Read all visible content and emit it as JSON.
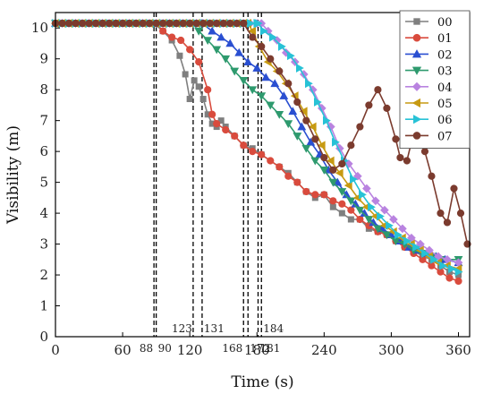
{
  "chart_data": {
    "type": "line",
    "xlabel": "Time (s)",
    "ylabel": "Visibility (m)",
    "xlim": [
      0,
      370
    ],
    "ylim": [
      0,
      10.5
    ],
    "xticks": [
      "0",
      "60",
      "120",
      "180",
      "240",
      "300",
      "360"
    ],
    "yticks": [
      "0",
      "1",
      "2",
      "3",
      "4",
      "5",
      "6",
      "7",
      "8",
      "9",
      "10"
    ],
    "legend_position": "top-right",
    "vlines": [
      {
        "x": 88,
        "label": "88"
      },
      {
        "x": 90,
        "label": "90"
      },
      {
        "x": 123,
        "label": "123"
      },
      {
        "x": 131,
        "label": "131"
      },
      {
        "x": 168,
        "label": "168"
      },
      {
        "x": 172,
        "label": "172"
      },
      {
        "x": 181,
        "label": "181"
      },
      {
        "x": 184,
        "label": "184"
      }
    ],
    "series": [
      {
        "name": "00",
        "color": "#7f7f7f",
        "marker": "square",
        "start": 88,
        "points": [
          [
            96,
            9.9
          ],
          [
            104,
            9.6
          ],
          [
            111,
            9.1
          ],
          [
            116,
            8.5
          ],
          [
            120,
            7.7
          ],
          [
            124,
            8.3
          ],
          [
            128,
            8.1
          ],
          [
            132,
            7.7
          ],
          [
            136,
            7.2
          ],
          [
            140,
            6.9
          ],
          [
            144,
            6.8
          ],
          [
            148,
            7.0
          ],
          [
            152,
            6.8
          ],
          [
            160,
            6.5
          ],
          [
            168,
            6.2
          ],
          [
            176,
            6.1
          ],
          [
            184,
            5.9
          ],
          [
            200,
            5.5
          ],
          [
            208,
            5.3
          ],
          [
            216,
            5.0
          ],
          [
            224,
            4.7
          ],
          [
            232,
            4.5
          ],
          [
            240,
            4.6
          ],
          [
            248,
            4.2
          ],
          [
            256,
            4.0
          ],
          [
            264,
            3.8
          ],
          [
            272,
            3.8
          ],
          [
            280,
            3.5
          ],
          [
            288,
            3.4
          ],
          [
            296,
            3.3
          ],
          [
            304,
            3.1
          ],
          [
            312,
            2.9
          ],
          [
            320,
            2.8
          ],
          [
            328,
            2.6
          ],
          [
            336,
            2.5
          ],
          [
            344,
            2.3
          ],
          [
            352,
            2.1
          ],
          [
            360,
            2.0
          ]
        ]
      },
      {
        "name": "01",
        "color": "#d94b3d",
        "marker": "circle",
        "start": 90,
        "points": [
          [
            96,
            9.9
          ],
          [
            104,
            9.7
          ],
          [
            112,
            9.6
          ],
          [
            120,
            9.3
          ],
          [
            128,
            8.9
          ],
          [
            136,
            8.0
          ],
          [
            140,
            7.2
          ],
          [
            144,
            6.9
          ],
          [
            152,
            6.7
          ],
          [
            160,
            6.5
          ],
          [
            168,
            6.2
          ],
          [
            176,
            6.0
          ],
          [
            184,
            5.9
          ],
          [
            192,
            5.7
          ],
          [
            200,
            5.5
          ],
          [
            208,
            5.2
          ],
          [
            216,
            5.0
          ],
          [
            224,
            4.7
          ],
          [
            232,
            4.6
          ],
          [
            240,
            4.6
          ],
          [
            248,
            4.4
          ],
          [
            256,
            4.3
          ],
          [
            264,
            4.1
          ],
          [
            272,
            3.8
          ],
          [
            280,
            3.6
          ],
          [
            288,
            3.4
          ],
          [
            296,
            3.3
          ],
          [
            304,
            3.1
          ],
          [
            312,
            2.9
          ],
          [
            320,
            2.7
          ],
          [
            328,
            2.5
          ],
          [
            336,
            2.3
          ],
          [
            344,
            2.1
          ],
          [
            352,
            1.9
          ],
          [
            360,
            1.8
          ]
        ]
      },
      {
        "name": "02",
        "color": "#2a4fd1",
        "marker": "triangle-up",
        "start": 131,
        "points": [
          [
            140,
            9.9
          ],
          [
            148,
            9.7
          ],
          [
            156,
            9.5
          ],
          [
            164,
            9.2
          ],
          [
            172,
            8.9
          ],
          [
            180,
            8.7
          ],
          [
            188,
            8.4
          ],
          [
            196,
            8.2
          ],
          [
            204,
            7.8
          ],
          [
            212,
            7.3
          ],
          [
            220,
            6.8
          ],
          [
            228,
            6.3
          ],
          [
            236,
            5.9
          ],
          [
            244,
            5.4
          ],
          [
            252,
            5.0
          ],
          [
            260,
            4.6
          ],
          [
            268,
            4.3
          ],
          [
            276,
            4.0
          ],
          [
            284,
            3.7
          ],
          [
            292,
            3.5
          ],
          [
            300,
            3.3
          ],
          [
            308,
            3.1
          ],
          [
            316,
            2.9
          ],
          [
            324,
            2.8
          ],
          [
            332,
            2.7
          ],
          [
            340,
            2.6
          ],
          [
            348,
            2.5
          ],
          [
            360,
            2.4
          ]
        ]
      },
      {
        "name": "03",
        "color": "#2e9a6e",
        "marker": "triangle-down",
        "start": 123,
        "points": [
          [
            128,
            9.9
          ],
          [
            136,
            9.6
          ],
          [
            144,
            9.3
          ],
          [
            152,
            9.0
          ],
          [
            160,
            8.6
          ],
          [
            168,
            8.3
          ],
          [
            176,
            8.0
          ],
          [
            184,
            7.8
          ],
          [
            192,
            7.5
          ],
          [
            200,
            7.2
          ],
          [
            208,
            6.9
          ],
          [
            216,
            6.5
          ],
          [
            224,
            6.1
          ],
          [
            232,
            5.7
          ],
          [
            240,
            5.4
          ],
          [
            248,
            5.0
          ],
          [
            256,
            4.7
          ],
          [
            264,
            4.4
          ],
          [
            272,
            4.1
          ],
          [
            280,
            3.8
          ],
          [
            288,
            3.5
          ],
          [
            296,
            3.3
          ],
          [
            304,
            3.1
          ],
          [
            312,
            3.0
          ],
          [
            320,
            2.8
          ],
          [
            328,
            2.7
          ],
          [
            336,
            2.6
          ],
          [
            344,
            2.5
          ],
          [
            360,
            2.5
          ]
        ]
      },
      {
        "name": "04",
        "color": "#b983e0",
        "marker": "diamond",
        "start": 184,
        "points": [
          [
            190,
            9.9
          ],
          [
            198,
            9.6
          ],
          [
            206,
            9.2
          ],
          [
            214,
            8.9
          ],
          [
            222,
            8.5
          ],
          [
            230,
            8.0
          ],
          [
            238,
            7.4
          ],
          [
            246,
            6.8
          ],
          [
            254,
            6.1
          ],
          [
            262,
            5.6
          ],
          [
            270,
            5.2
          ],
          [
            278,
            4.8
          ],
          [
            286,
            4.4
          ],
          [
            294,
            4.1
          ],
          [
            302,
            3.8
          ],
          [
            310,
            3.5
          ],
          [
            318,
            3.2
          ],
          [
            326,
            3.0
          ],
          [
            334,
            2.8
          ],
          [
            342,
            2.6
          ],
          [
            350,
            2.5
          ],
          [
            360,
            2.4
          ]
        ]
      },
      {
        "name": "05",
        "color": "#c79a12",
        "marker": "triangle-left",
        "start": 172,
        "points": [
          [
            176,
            9.9
          ],
          [
            182,
            9.4
          ],
          [
            190,
            8.9
          ],
          [
            198,
            8.6
          ],
          [
            206,
            8.2
          ],
          [
            214,
            7.8
          ],
          [
            222,
            7.3
          ],
          [
            230,
            6.8
          ],
          [
            238,
            6.2
          ],
          [
            246,
            5.7
          ],
          [
            254,
            5.3
          ],
          [
            262,
            4.9
          ],
          [
            270,
            4.5
          ],
          [
            278,
            4.2
          ],
          [
            286,
            3.9
          ],
          [
            294,
            3.6
          ],
          [
            302,
            3.4
          ],
          [
            310,
            3.2
          ],
          [
            318,
            3.0
          ],
          [
            326,
            2.8
          ],
          [
            334,
            2.6
          ],
          [
            342,
            2.4
          ],
          [
            350,
            2.3
          ],
          [
            360,
            2.2
          ]
        ]
      },
      {
        "name": "06",
        "color": "#27c2d6",
        "marker": "triangle-right",
        "start": 181,
        "points": [
          [
            186,
            9.9
          ],
          [
            194,
            9.7
          ],
          [
            202,
            9.4
          ],
          [
            210,
            9.1
          ],
          [
            218,
            8.7
          ],
          [
            226,
            8.2
          ],
          [
            234,
            7.6
          ],
          [
            242,
            7.0
          ],
          [
            250,
            6.3
          ],
          [
            258,
            5.7
          ],
          [
            266,
            5.1
          ],
          [
            274,
            4.6
          ],
          [
            282,
            4.2
          ],
          [
            290,
            3.9
          ],
          [
            298,
            3.6
          ],
          [
            306,
            3.3
          ],
          [
            314,
            3.1
          ],
          [
            322,
            2.9
          ],
          [
            330,
            2.7
          ],
          [
            338,
            2.5
          ],
          [
            346,
            2.3
          ],
          [
            354,
            2.2
          ],
          [
            360,
            2.1
          ]
        ]
      },
      {
        "name": "07",
        "color": "#7b3b2e",
        "marker": "circle",
        "start": 168,
        "points": [
          [
            176,
            9.7
          ],
          [
            184,
            9.4
          ],
          [
            192,
            9.0
          ],
          [
            200,
            8.6
          ],
          [
            208,
            8.2
          ],
          [
            216,
            7.6
          ],
          [
            224,
            7.0
          ],
          [
            232,
            6.4
          ],
          [
            240,
            5.8
          ],
          [
            248,
            5.4
          ],
          [
            256,
            5.6
          ],
          [
            264,
            6.2
          ],
          [
            272,
            6.8
          ],
          [
            280,
            7.5
          ],
          [
            288,
            8.0
          ],
          [
            296,
            7.4
          ],
          [
            304,
            6.4
          ],
          [
            308,
            5.8
          ],
          [
            314,
            5.7
          ],
          [
            318,
            6.3
          ],
          [
            324,
            6.8
          ],
          [
            330,
            6.0
          ],
          [
            336,
            5.2
          ],
          [
            344,
            4.0
          ],
          [
            350,
            3.7
          ],
          [
            356,
            4.8
          ],
          [
            362,
            4.0
          ],
          [
            368,
            3.0
          ]
        ]
      }
    ]
  }
}
